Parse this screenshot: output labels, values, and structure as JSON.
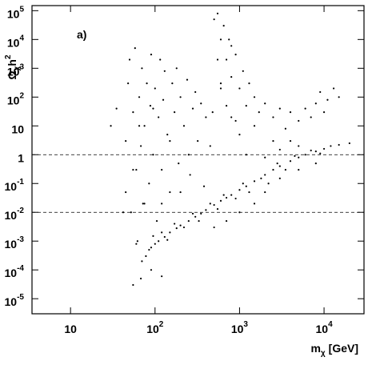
{
  "chart_data": {
    "type": "scatter",
    "annotation": "a)",
    "ylabel": {
      "base": "Ω",
      "sub": "χ",
      "main": "h",
      "sup": "2"
    },
    "xlabel": {
      "base": "m",
      "sub": "χ",
      "unit": "[GeV]"
    },
    "log_x": true,
    "log_y": true,
    "color": "#000000",
    "xlim": [
      3.5,
      29700
    ],
    "ylim": [
      3e-06,
      150000
    ],
    "xticks": [
      {
        "value": 10,
        "label": "10"
      },
      {
        "value": 100,
        "label": "10",
        "exponent": "2"
      },
      {
        "value": 1000,
        "label": "10",
        "exponent": "3"
      },
      {
        "value": 10000,
        "label": "10",
        "exponent": "4"
      }
    ],
    "yticks": [
      {
        "value": 100000,
        "label": "10",
        "exponent": "5"
      },
      {
        "value": 10000,
        "label": "10",
        "exponent": "4"
      },
      {
        "value": 1000,
        "label": "10",
        "exponent": "3"
      },
      {
        "value": 100,
        "label": "10",
        "exponent": "2"
      },
      {
        "value": 10,
        "label": "10"
      },
      {
        "value": 1,
        "label": "1"
      },
      {
        "value": 0.1,
        "label": "10",
        "exponent": "-1"
      },
      {
        "value": 0.01,
        "label": "10",
        "exponent": "-2"
      },
      {
        "value": 0.001,
        "label": "10",
        "exponent": "-3"
      },
      {
        "value": 0.0001,
        "label": "10",
        "exponent": "-4"
      },
      {
        "value": 1e-05,
        "label": "10",
        "exponent": "-5"
      }
    ],
    "reference_lines": [
      1,
      0.01
    ],
    "x": [
      85,
      90,
      100,
      110,
      130,
      150,
      180,
      200,
      250,
      300,
      350,
      400,
      500,
      600,
      700,
      800,
      1000,
      1200,
      1500,
      2000,
      2500,
      3000,
      4000,
      5000,
      6000,
      8000,
      10000,
      15000,
      20000,
      95,
      120,
      140,
      170,
      220,
      280,
      330,
      450,
      550,
      650,
      900,
      1100,
      1300,
      1800,
      2200,
      2800,
      3500,
      4500,
      7000,
      9000,
      12000,
      45,
      45,
      48,
      50,
      52,
      55,
      58,
      60,
      62,
      65,
      68,
      70,
      72,
      75,
      78,
      80,
      85,
      88,
      90,
      95,
      100,
      105,
      110,
      115,
      120,
      125,
      130,
      140,
      150,
      160,
      170,
      180,
      190,
      200,
      220,
      240,
      260,
      280,
      300,
      320,
      350,
      380,
      400,
      450,
      480,
      55,
      65,
      75,
      95,
      120,
      150,
      200,
      250,
      60,
      70,
      68,
      55,
      120,
      90,
      42,
      35,
      30,
      500,
      550,
      600,
      650,
      700,
      750,
      800,
      900,
      1000,
      1100,
      1200,
      1300,
      1500,
      1700,
      2000,
      2500,
      3000,
      3500,
      4000,
      5000,
      6000,
      7000,
      8000,
      9000,
      10000,
      11000,
      13000,
      15000,
      600,
      800,
      1000,
      1200,
      1500,
      2000,
      2500,
      3000,
      4000,
      5000,
      3000,
      5000,
      8000,
      2000,
      1500,
      1000,
      700,
      500,
      600,
      700,
      900,
      550,
      800
    ],
    "y": [
      0.0005,
      0.0006,
      0.0008,
      0.001,
      0.0014,
      0.002,
      0.0028,
      0.0035,
      0.005,
      0.007,
      0.009,
      0.012,
      0.018,
      0.025,
      0.032,
      0.04,
      0.06,
      0.08,
      0.12,
      0.2,
      0.3,
      0.4,
      0.6,
      0.8,
      1.0,
      1.3,
      1.6,
      2.2,
      2.5,
      0.0015,
      0.002,
      0.0011,
      0.004,
      0.003,
      0.009,
      0.005,
      0.02,
      0.013,
      0.04,
      0.03,
      0.1,
      0.05,
      0.15,
      0.1,
      0.5,
      0.3,
      0.9,
      1.4,
      1.1,
      2.0,
      0.05,
      3,
      300,
      2000,
      0.01,
      30,
      5000,
      0.3,
      0.001,
      100,
      2,
      1000,
      0.02,
      10,
      0.0003,
      300,
      0.1,
      50,
      3000,
      1,
      200,
      0.005,
      20,
      2000,
      0.3,
      80,
      800,
      5,
      0.05,
      300,
      30,
      1000,
      0.5,
      100,
      10,
      400,
      0.2,
      40,
      150,
      3,
      60,
      0.08,
      20,
      2,
      30,
      0.3,
      10,
      0.02,
      40,
      0.02,
      3,
      0.05,
      1,
      0.0008,
      0.0002,
      5e-05,
      3e-05,
      6e-05,
      0.0001,
      0.01,
      40,
      10,
      50000,
      80000,
      10000,
      30000,
      2000,
      10000,
      500,
      3000,
      200,
      800,
      50,
      300,
      100,
      30,
      60,
      20,
      40,
      8,
      30,
      15,
      40,
      20,
      60,
      150,
      30,
      80,
      200,
      100,
      200,
      20,
      5,
      1,
      10,
      0.8,
      3,
      1.5,
      3,
      2,
      0.15,
      0.3,
      0.5,
      0.05,
      0.02,
      0.01,
      0.005,
      0.003,
      300,
      50,
      15,
      2000,
      6000
    ]
  }
}
